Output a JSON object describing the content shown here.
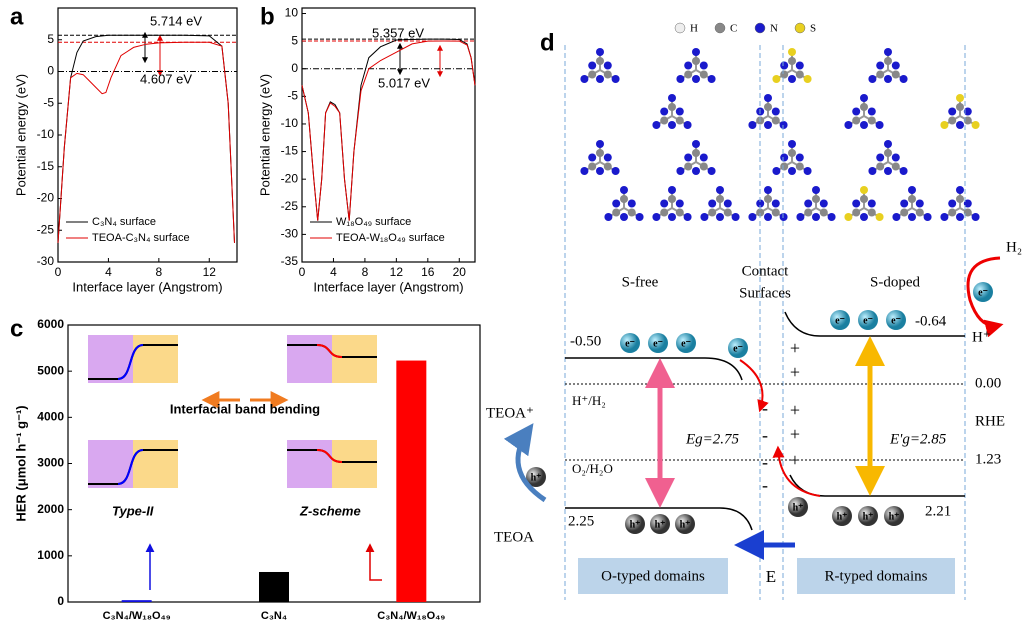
{
  "chart_data": [
    {
      "type": "line",
      "label": "a",
      "xlabel": "Interface layer (Angstrom)",
      "ylabel": "Potential energy (eV)",
      "xlim": [
        0,
        14.2
      ],
      "ylim": [
        -30,
        10
      ],
      "xticks": [
        0,
        4,
        8,
        12
      ],
      "yticks": [
        -30,
        -25,
        -20,
        -15,
        -10,
        -5,
        0,
        5
      ],
      "legend": "lower left",
      "reference_lines": [
        {
          "value": 5.714,
          "color": "#000000"
        },
        {
          "value": 4.607,
          "color": "#e00000"
        },
        {
          "value": 0,
          "color": "#000000"
        }
      ],
      "annotations": [
        {
          "text": "5.714 eV",
          "color": "#000000"
        },
        {
          "text": "4.607 eV",
          "color": "#e00000"
        }
      ],
      "series": [
        {
          "name": "C₃N₄ surface",
          "color": "#000000",
          "x": [
            0,
            0.5,
            1,
            1.5,
            2,
            3,
            4,
            6,
            8,
            10,
            12,
            13,
            13.5,
            14
          ],
          "values": [
            -27,
            -12,
            -1,
            3,
            4.8,
            5.5,
            5.7,
            5.71,
            5.71,
            5.7,
            5.6,
            4,
            -5,
            -27
          ]
        },
        {
          "name": "TEOA-C₃N₄ surface",
          "color": "#e00000",
          "x": [
            0,
            0.5,
            1,
            1.5,
            2,
            2.5,
            3,
            3.5,
            3.8,
            4.2,
            5,
            6,
            7,
            8,
            10,
            12,
            13,
            13.5,
            14
          ],
          "values": [
            -27,
            -12,
            -1,
            -0.3,
            -0.5,
            -1.5,
            -2.5,
            -3.5,
            -3.3,
            -1,
            2.5,
            3.8,
            4.3,
            4.5,
            4.6,
            4.6,
            4,
            -5,
            -27
          ]
        }
      ]
    },
    {
      "type": "line",
      "label": "b",
      "xlabel": "Interface layer (Angstrom)",
      "ylabel": "Potential energy (eV)",
      "xlim": [
        0,
        22
      ],
      "ylim": [
        -35,
        11
      ],
      "xticks": [
        0,
        4,
        8,
        12,
        16,
        20
      ],
      "yticks": [
        -35,
        -30,
        -25,
        -20,
        -15,
        -10,
        -5,
        0,
        5,
        10
      ],
      "legend": "lower left",
      "reference_lines": [
        {
          "value": 5.357,
          "color": "#000000"
        },
        {
          "value": 5.017,
          "color": "#e00000"
        },
        {
          "value": 0,
          "color": "#000000"
        }
      ],
      "annotations": [
        {
          "text": "5.357 eV",
          "color": "#000000"
        },
        {
          "text": "5.017 eV",
          "color": "#e00000"
        }
      ],
      "series": [
        {
          "name": "W₁₈O₄₉ surface",
          "color": "#000000",
          "x": [
            0,
            0.8,
            1.5,
            2,
            2.5,
            3,
            3.6,
            4.2,
            4.8,
            5.4,
            6,
            6.6,
            7.5,
            8.5,
            10,
            12,
            14,
            16,
            18,
            20,
            21,
            21.5,
            22
          ],
          "values": [
            -3,
            -8,
            -20,
            -27.5,
            -20,
            -8,
            -6,
            -6.5,
            -8,
            -20,
            -27.5,
            -15,
            -3,
            2,
            4,
            5.2,
            5.3,
            5.36,
            5.36,
            5.3,
            4.5,
            2,
            -3
          ]
        },
        {
          "name": "TEOA-W₁₈O₄₉ surface",
          "color": "#e00000",
          "x": [
            0,
            0.8,
            1.5,
            2,
            2.5,
            3,
            3.6,
            4.2,
            4.8,
            5.4,
            6,
            6.6,
            7.5,
            8.5,
            10,
            12,
            14,
            16,
            18,
            20,
            21,
            21.5,
            22
          ],
          "values": [
            -3,
            -8,
            -20,
            -27.5,
            -20,
            -8,
            -6.2,
            -6.8,
            -8,
            -20,
            -27.5,
            -15,
            -4,
            0,
            1.5,
            3,
            4.5,
            5,
            5.02,
            5,
            4.3,
            2,
            -3
          ]
        }
      ]
    },
    {
      "type": "bar",
      "label": "c",
      "ylabel": "HER (μmol h⁻¹ g⁻¹)",
      "ylim": [
        0,
        6000
      ],
      "yticks": [
        0,
        1000,
        2000,
        3000,
        4000,
        5000,
        6000
      ],
      "categories": [
        "C₃N₄/W₁₈O₄₉",
        "C₃N₄",
        "C₃N₄/W₁₈O₄₉"
      ],
      "values": [
        40,
        650,
        5230
      ],
      "colors": [
        "#1010e0",
        "#000000",
        "#ff0000"
      ],
      "annotations": [
        {
          "text": "Interfacial band bending",
          "color": "#f07b20"
        },
        {
          "text": "Type-II",
          "color": "#1010e0"
        },
        {
          "text": "Z-scheme",
          "color": "#e00000"
        }
      ]
    }
  ],
  "diagram": {
    "label": "d",
    "atoms": [
      "H",
      "C",
      "N",
      "S"
    ],
    "regions": [
      "S-free",
      "Contact",
      "Surfaces",
      "S-doped"
    ],
    "levels": [
      "-0.50",
      "-0.64",
      "0.00",
      "RHE",
      "1.23",
      "2.25",
      "2.21"
    ],
    "couples": [
      "H⁺/H₂",
      "O₂/H₂O",
      "H₂",
      "H⁺",
      "TEOA⁺",
      "TEOA"
    ],
    "gaps": [
      "Eg=2.75",
      "E'g=2.85"
    ],
    "electron": "e⁻",
    "hole": "h⁺",
    "plus": "+",
    "minus": "-",
    "domains": [
      "O-typed domains",
      "R-typed domains"
    ],
    "field": "E"
  }
}
